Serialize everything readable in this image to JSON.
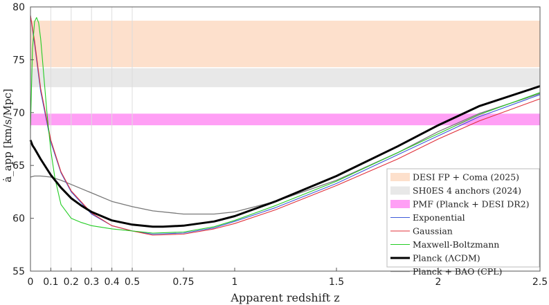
{
  "chart_data": {
    "type": "line",
    "title": "",
    "xlabel": "Apparent redshift z",
    "ylabel": "ȧ_app [km/s/Mpc]",
    "xlim": [
      0,
      2.5
    ],
    "ylim": [
      55,
      80
    ],
    "x_ticks": [
      0,
      0.1,
      0.2,
      0.3,
      0.4,
      0.5,
      0.75,
      1,
      1.5,
      2,
      2.5
    ],
    "x_tick_labels": [
      "0",
      "0.1",
      "0.2",
      "0.3",
      "0.4",
      "0.5",
      "0.75",
      "1",
      "1.5",
      "2",
      "2.5"
    ],
    "y_ticks": [
      55,
      60,
      65,
      70,
      75,
      80
    ],
    "y_tick_labels": [
      "55",
      "60",
      "65",
      "70",
      "75",
      "80"
    ],
    "vertical_guides": [
      0.1,
      0.2,
      0.3,
      0.4,
      0.5
    ],
    "legend_position": "lower-right",
    "bands": [
      {
        "name": "DESI FP + Coma (2025)",
        "y_range": [
          74.3,
          78.7
        ],
        "color": "#fde0cc"
      },
      {
        "name": "SH0ES 4 anchors (2024)",
        "y_range": [
          72.4,
          74.2
        ],
        "color": "#e8e8e8"
      },
      {
        "name": "PMF (Planck + DESI DR2)",
        "y_range": [
          68.8,
          69.9
        ],
        "color": "#ff9ff5"
      }
    ],
    "series": [
      {
        "name": "Exponential",
        "color": "#3d5bd9",
        "width": 1.1,
        "x": [
          0,
          0.02,
          0.05,
          0.1,
          0.15,
          0.2,
          0.3,
          0.4,
          0.5,
          0.6,
          0.75,
          0.9,
          1.0,
          1.2,
          1.5,
          1.8,
          2.0,
          2.2,
          2.5
        ],
        "y": [
          79.2,
          76.5,
          72.0,
          67.2,
          64.3,
          62.5,
          60.4,
          59.3,
          58.8,
          58.5,
          58.6,
          59.1,
          59.7,
          61.0,
          63.3,
          66.0,
          67.8,
          69.6,
          71.7
        ]
      },
      {
        "name": "Gaussian",
        "color": "#e0303a",
        "width": 1.1,
        "x": [
          0,
          0.02,
          0.05,
          0.1,
          0.15,
          0.2,
          0.3,
          0.4,
          0.5,
          0.6,
          0.75,
          0.9,
          1.0,
          1.2,
          1.5,
          1.8,
          2.0,
          2.2,
          2.5
        ],
        "y": [
          79.2,
          76.8,
          72.3,
          67.4,
          64.4,
          62.6,
          60.5,
          59.3,
          58.8,
          58.4,
          58.5,
          59.0,
          59.5,
          60.8,
          63.1,
          65.6,
          67.5,
          69.2,
          71.3
        ]
      },
      {
        "name": "Maxwell-Boltzmann",
        "color": "#22cc22",
        "width": 1.1,
        "x": [
          0,
          0.01,
          0.02,
          0.03,
          0.04,
          0.05,
          0.06,
          0.08,
          0.1,
          0.12,
          0.15,
          0.2,
          0.25,
          0.3,
          0.4,
          0.5,
          0.6,
          0.75,
          0.9,
          1.0,
          1.2,
          1.5,
          1.8,
          2.0,
          2.2,
          2.5
        ],
        "y": [
          68.5,
          76.0,
          78.6,
          79.0,
          78.5,
          77.0,
          74.8,
          70.2,
          66.4,
          63.8,
          61.3,
          60.0,
          59.6,
          59.3,
          59.0,
          58.8,
          58.6,
          58.7,
          59.2,
          59.8,
          61.2,
          63.5,
          66.2,
          68.0,
          69.8,
          71.9
        ]
      },
      {
        "name": "Planck (ΛCDM)",
        "color": "#000000",
        "width": 3.0,
        "x": [
          0,
          0.01,
          0.02,
          0.05,
          0.1,
          0.15,
          0.2,
          0.25,
          0.3,
          0.4,
          0.5,
          0.6,
          0.65,
          0.75,
          0.9,
          1.0,
          1.2,
          1.5,
          1.8,
          2.0,
          2.2,
          2.5
        ],
        "y": [
          67.4,
          66.9,
          66.6,
          65.6,
          64.1,
          62.9,
          61.9,
          61.2,
          60.6,
          59.8,
          59.4,
          59.2,
          59.2,
          59.3,
          59.7,
          60.2,
          61.6,
          64.0,
          66.8,
          68.8,
          70.6,
          72.5
        ]
      },
      {
        "name": "Planck + BAO (CPL)",
        "color": "#777777",
        "width": 1.3,
        "x": [
          0,
          0.02,
          0.05,
          0.1,
          0.15,
          0.2,
          0.3,
          0.4,
          0.5,
          0.6,
          0.75,
          0.9,
          1.0,
          1.2,
          1.5,
          1.8,
          2.0,
          2.2,
          2.5
        ],
        "y": [
          63.9,
          64.0,
          64.0,
          63.9,
          63.6,
          63.2,
          62.4,
          61.6,
          61.1,
          60.7,
          60.4,
          60.4,
          60.6,
          61.6,
          63.6,
          66.2,
          68.2,
          69.9,
          71.8
        ]
      }
    ]
  }
}
